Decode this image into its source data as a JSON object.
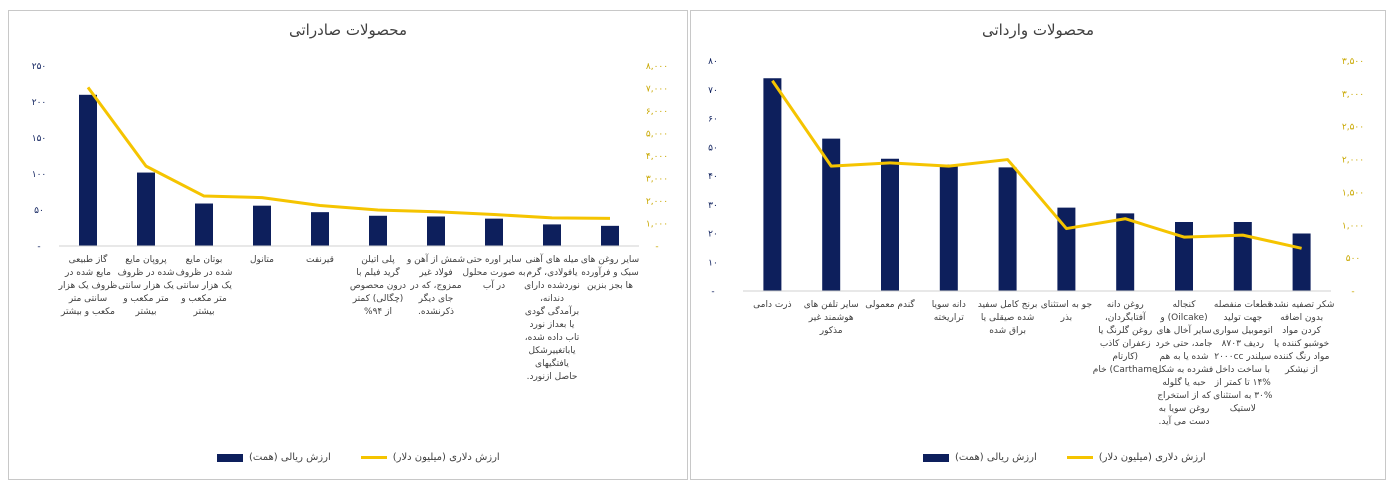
{
  "colors": {
    "bar": "#0d1f5c",
    "line": "#f5c400",
    "leftAxis": "#0d1f5c",
    "rightAxis": "#c9a800"
  },
  "chart_data": [
    {
      "id": "export",
      "type": "bar",
      "title": "محصولات صادراتی",
      "categories": [
        "گاز طبیعی مایع شده در ظروف یک هزار سانتی متر مکعب و بیشتر",
        "پروپان مایع شده در ظروف یک هزار سانتی متر مکعب و بیشتر",
        "بوتان مایع شده در ظروف یک هزار سانتی متر مکعب و بیشتر",
        "متانول",
        "قیرنفت",
        "پلی اتیلن گرید فیلم با درون محصوص (چگالی) کمتر از ۹۴%",
        "شمش از آهن و فولاد غیر ممزوج، که در جای دیگر ذکرنشده.",
        "سایر اوره حتی به صورت محلول در آب",
        "میله های آهنی یافولادی، گرم نوردشده دارای دندانه، برآمدگی گودی یا بعداز نورد تاب داده شده، یاباتغییرشکل یافتگیهای حاصل ازنورد.",
        "سایر روغن های سبک و فرآورده ها بجز بنزین"
      ],
      "series": [
        {
          "name": "ارزش ریالی (همت)",
          "type": "bar",
          "axis": "left",
          "values": [
            210,
            102,
            59,
            56,
            47,
            42,
            41,
            38,
            30,
            28
          ]
        },
        {
          "name": "ارزش دلاری (میلیون دلار)",
          "type": "line",
          "axis": "right",
          "values": [
            7050,
            3550,
            2220,
            2150,
            1800,
            1600,
            1520,
            1400,
            1250,
            1230
          ]
        }
      ],
      "leftAxis": {
        "ylim": [
          0,
          250
        ],
        "ticks": [
          "-",
          "۵۰",
          "۱۰۰",
          "۱۵۰",
          "۲۰۰",
          "۲۵۰"
        ]
      },
      "rightAxis": {
        "ylim": [
          0,
          8000
        ],
        "ticks": [
          "-",
          "۱,۰۰۰",
          "۲,۰۰۰",
          "۳,۰۰۰",
          "۴,۰۰۰",
          "۵,۰۰۰",
          "۶,۰۰۰",
          "۷,۰۰۰",
          "۸,۰۰۰"
        ]
      },
      "legend": {
        "bar": "ارزش ریالی (همت)",
        "line": "ارزش دلاری (میلیون دلار)",
        "position": "bottom"
      }
    },
    {
      "id": "import",
      "type": "bar",
      "title": "محصولات وارداتی",
      "categories": [
        "ذرت دامی",
        "سایر تلفن های هوشمند غیر مذکور",
        "گندم معمولی",
        "دانه سویا تراریخته",
        "برنج کامل سفید شده صیقلی یا براق شده",
        "جو به استثنای بذر",
        "روغن دانه آفتابگردان، روغن گلرنگ یا زعفران کاذب (کارتام Carthame) خام",
        "کنجاله (Oilcake) و سایر آخال های جامد، حتی خرد شده یا به هم فشرده به شکل حبه یا گلوله که از استخراج روغن سویا به دست می آید.",
        "قطعات منفصله جهت تولید اتوموبیل سواری ردیف ۸۷۰۳ سیلندر ۲۰۰۰cc با ساخت داخل ۱۴% تا کمتر از ۳۰% به استثنای لاستیک",
        "شکر تصفیه نشده بدون اضافه کردن مواد خوشبو کننده یا مواد رنگ کننده از نیشکر"
      ],
      "series": [
        {
          "name": "ارزش ریالی (همت)",
          "type": "bar",
          "axis": "left",
          "values": [
            74,
            53,
            46,
            44,
            43,
            29,
            27,
            24,
            24,
            20
          ]
        },
        {
          "name": "ارزش دلاری (میلیون دلار)",
          "type": "line",
          "axis": "right",
          "values": [
            3200,
            1900,
            1950,
            1900,
            2000,
            950,
            1100,
            820,
            850,
            650
          ]
        }
      ],
      "leftAxis": {
        "ylim": [
          0,
          80
        ],
        "ticks": [
          "-",
          "۱۰",
          "۲۰",
          "۳۰",
          "۴۰",
          "۵۰",
          "۶۰",
          "۷۰",
          "۸۰"
        ]
      },
      "rightAxis": {
        "ylim": [
          0,
          3500
        ],
        "ticks": [
          "-",
          "۵۰۰",
          "۱,۰۰۰",
          "۱,۵۰۰",
          "۲,۰۰۰",
          "۲,۵۰۰",
          "۳,۰۰۰",
          "۳,۵۰۰"
        ]
      },
      "legend": {
        "bar": "ارزش ریالی (همت)",
        "line": "ارزش دلاری (میلیون دلار)",
        "position": "bottom"
      }
    }
  ]
}
